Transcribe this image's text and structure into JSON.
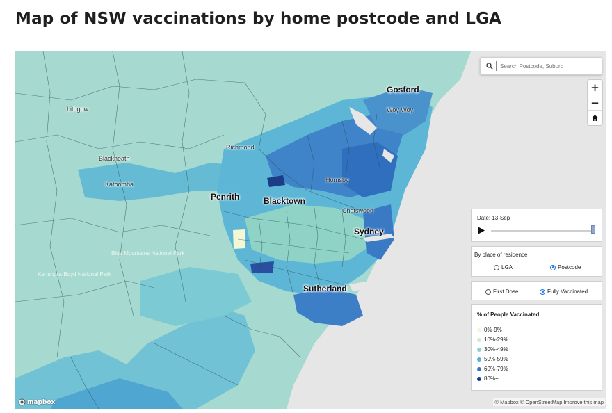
{
  "page": {
    "title": "Map of NSW vaccinations by home postcode and LGA"
  },
  "search": {
    "placeholder": "Search Postcode, Suburb",
    "icon": "search-icon"
  },
  "controls": {
    "zoom_in": "+",
    "zoom_out": "−",
    "home_icon": "home-icon"
  },
  "timeline": {
    "date_label": "Date: 13-Sep",
    "progress": 1.0
  },
  "residence": {
    "title": "By place of residence",
    "options": [
      {
        "label": "LGA",
        "selected": false
      },
      {
        "label": "Postcode",
        "selected": true
      }
    ]
  },
  "dose": {
    "options": [
      {
        "label": "First Dose",
        "selected": false
      },
      {
        "label": "Fully Vaccinated",
        "selected": true
      }
    ]
  },
  "legend": {
    "title": "% of People Vaccinated",
    "items": [
      {
        "label": "0%-9%",
        "color": "#f4f7d4"
      },
      {
        "label": "10%-29%",
        "color": "#d0ebc5"
      },
      {
        "label": "30%-49%",
        "color": "#8fd3c7"
      },
      {
        "label": "50%-59%",
        "color": "#58b3d3"
      },
      {
        "label": "60%-79%",
        "color": "#3377c2"
      },
      {
        "label": "80%+",
        "color": "#1b3d87"
      }
    ]
  },
  "places": {
    "gosford": "Gosford",
    "woywoy": "Woy Woy",
    "lithgow": "Lithgow",
    "richmond": "Richmond",
    "blackheath": "Blackheath",
    "katoomba": "Katoomba",
    "penrith": "Penrith",
    "blacktown": "Blacktown",
    "hornsby": "Hornsby",
    "chatswood": "Chatswood",
    "sydney": "Sydney",
    "sutherland": "Sutherland",
    "blue_mountains": "Blue Mountains National Park",
    "kanangra": "Kanangra-Boyd National Park"
  },
  "attribution": "© Mapbox © OpenStreetMap Improve this map",
  "mapbox_logo": "mapbox",
  "map_colors": {
    "land_base": "#a6d9cf",
    "ocean": "#e6e6e6",
    "boundary": "#2b4f5a"
  }
}
